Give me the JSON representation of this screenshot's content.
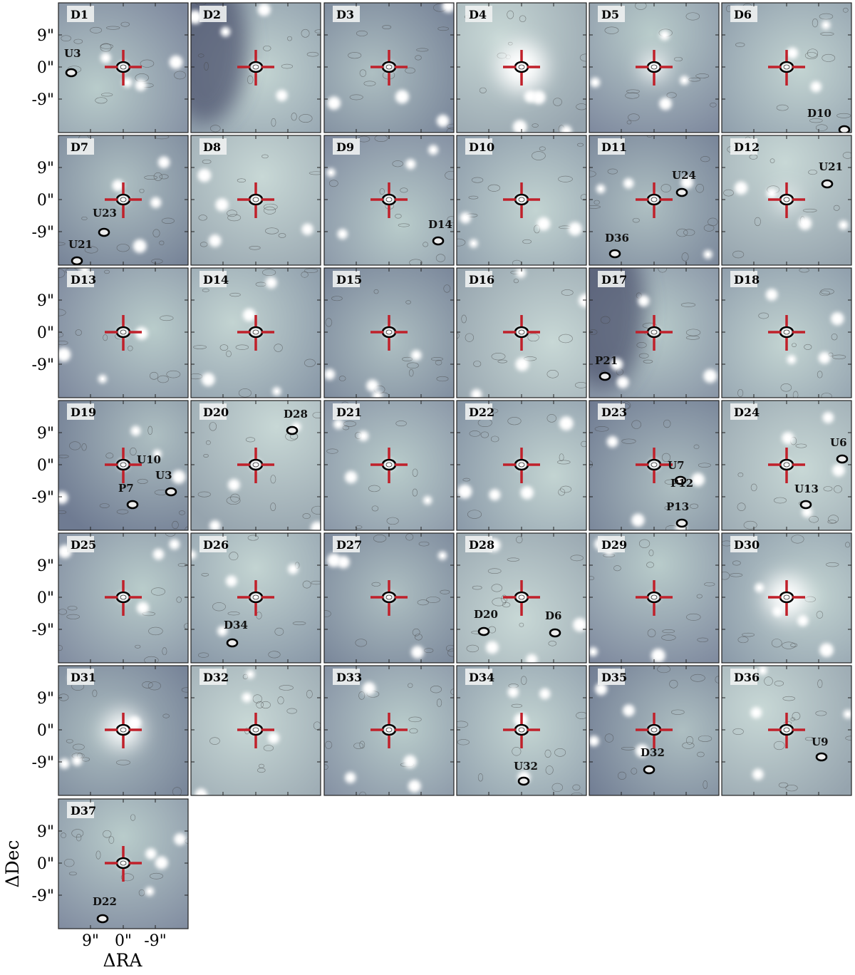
{
  "panels": [
    {
      "label": "D1",
      "annotations": [
        "U3"
      ]
    },
    {
      "label": "D2",
      "annotations": []
    },
    {
      "label": "D3",
      "annotations": []
    },
    {
      "label": "D4",
      "annotations": []
    },
    {
      "label": "D5",
      "annotations": []
    },
    {
      "label": "D6",
      "annotations": [
        "D10"
      ]
    },
    {
      "label": "D7",
      "annotations": [
        "U23",
        "U21"
      ]
    },
    {
      "label": "D8",
      "annotations": []
    },
    {
      "label": "D9",
      "annotations": [
        "D14"
      ]
    },
    {
      "label": "D10",
      "annotations": []
    },
    {
      "label": "D11",
      "annotations": [
        "U24",
        "D36"
      ]
    },
    {
      "label": "D12",
      "annotations": [
        "U21"
      ]
    },
    {
      "label": "D13",
      "annotations": []
    },
    {
      "label": "D14",
      "annotations": []
    },
    {
      "label": "D15",
      "annotations": []
    },
    {
      "label": "D16",
      "annotations": []
    },
    {
      "label": "D17",
      "annotations": [
        "P21"
      ]
    },
    {
      "label": "D18",
      "annotations": []
    },
    {
      "label": "D19",
      "annotations": [
        "U10",
        "U3",
        "P7"
      ]
    },
    {
      "label": "D20",
      "annotations": [
        "D28"
      ]
    },
    {
      "label": "D21",
      "annotations": []
    },
    {
      "label": "D22",
      "annotations": []
    },
    {
      "label": "D23",
      "annotations": [
        "U7",
        "P12",
        "P13"
      ]
    },
    {
      "label": "D24",
      "annotations": [
        "U6",
        "U13"
      ]
    },
    {
      "label": "D25",
      "annotations": []
    },
    {
      "label": "D26",
      "annotations": [
        "D34"
      ]
    },
    {
      "label": "D27",
      "annotations": []
    },
    {
      "label": "D28",
      "annotations": [
        "D20",
        "D6"
      ]
    },
    {
      "label": "D29",
      "annotations": []
    },
    {
      "label": "D30",
      "annotations": []
    },
    {
      "label": "D31",
      "annotations": []
    },
    {
      "label": "D32",
      "annotations": []
    },
    {
      "label": "D33",
      "annotations": []
    },
    {
      "label": "D34",
      "annotations": [
        "U32"
      ]
    },
    {
      "label": "D35",
      "annotations": [
        "D32"
      ]
    },
    {
      "label": "D36",
      "annotations": [
        "U9"
      ]
    },
    {
      "label": "D37",
      "annotations": [
        "D22"
      ]
    }
  ],
  "y_ticks": [
    "9\"",
    "0\"",
    "-9\""
  ],
  "x_ticks": [
    "9\"",
    "0\"",
    "-9\""
  ],
  "x_label": "ΔRA",
  "y_label": "ΔDec"
}
